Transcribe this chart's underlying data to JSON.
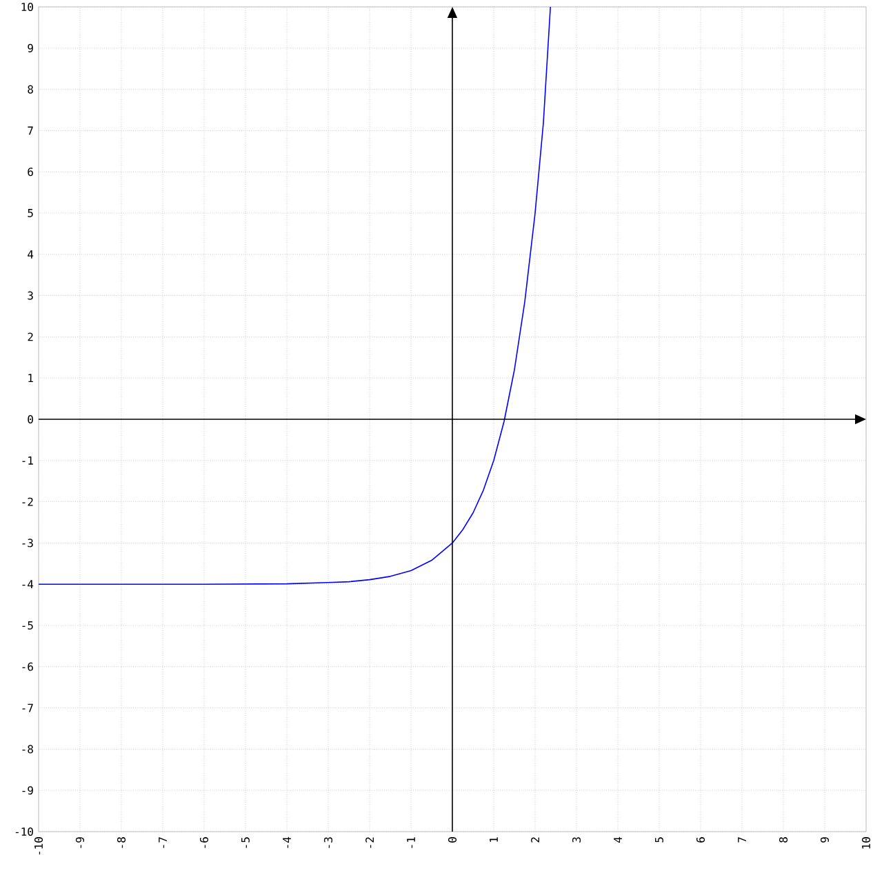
{
  "chart_data": {
    "type": "line",
    "x": [
      -10,
      -6,
      -4,
      -3,
      -2.5,
      -2,
      -1.5,
      -1,
      -0.5,
      0,
      0.25,
      0.5,
      0.75,
      1,
      1.25,
      1.5,
      1.75,
      2,
      2.2,
      2.37
    ],
    "series": [
      {
        "color": "#0000ff",
        "values": [
          -4.0,
          -4.0,
          -3.99,
          -3.96,
          -3.94,
          -3.89,
          -3.81,
          -3.67,
          -3.42,
          -3.0,
          -2.68,
          -2.27,
          -1.72,
          -1.0,
          -0.05,
          1.2,
          2.85,
          5.0,
          7.19,
          10.0
        ]
      }
    ],
    "xlim": [
      -10,
      10
    ],
    "ylim": [
      -10,
      10
    ],
    "xticks": [
      -10,
      -9,
      -8,
      -7,
      -6,
      -5,
      -4,
      -3,
      -2,
      -1,
      0,
      1,
      2,
      3,
      4,
      5,
      6,
      7,
      8,
      9,
      10
    ],
    "yticks": [
      -10,
      -9,
      -8,
      -7,
      -6,
      -5,
      -4,
      -3,
      -2,
      -1,
      0,
      1,
      2,
      3,
      4,
      5,
      6,
      7,
      8,
      9,
      10
    ],
    "grid": true,
    "marker": "none",
    "line_style": "solid"
  }
}
